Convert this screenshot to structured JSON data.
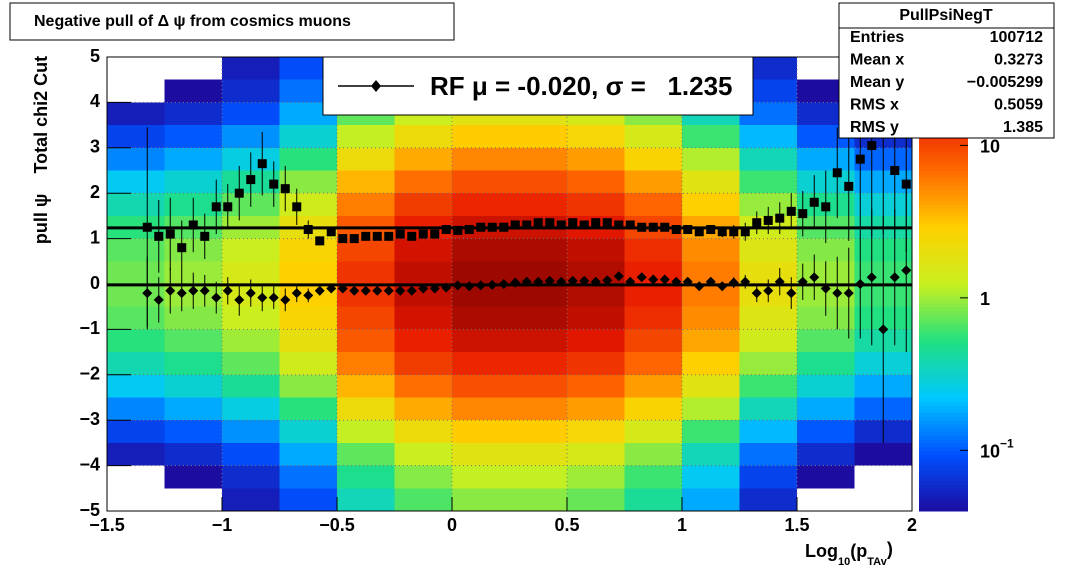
{
  "chart_data": {
    "type": "heatmap",
    "title": "Negative pull of Δ ψ from cosmics muons",
    "y_label": "pull ψ    Total chi2 Cut",
    "x_label": {
      "base": "Log",
      "sub": "10",
      "mid": "(p",
      "sub2": "TAv",
      "end": ")"
    },
    "legend_label": "RF μ = -0.020, σ =   1.235",
    "fit_mean": -0.02,
    "fit_sigma": 1.235,
    "stats": {
      "title": "PullPsiNegT",
      "rows": [
        {
          "label": "Entries",
          "value": "100712"
        },
        {
          "label": "Mean x",
          "value": "0.3273"
        },
        {
          "label": "Mean y",
          "value": "−0.005299"
        },
        {
          "label": "RMS x",
          "value": "0.5059"
        },
        {
          "label": "RMS y",
          "value": "1.385"
        }
      ]
    },
    "xlim": [
      -1.5,
      2
    ],
    "ylim": [
      -5,
      5
    ],
    "zlim": [
      0.04,
      38
    ],
    "log_z": true,
    "grid": true,
    "xticks": [
      {
        "value": -1.5,
        "label": "−1.5"
      },
      {
        "value": -1,
        "label": "−1"
      },
      {
        "value": -0.5,
        "label": "−0.5"
      },
      0,
      0.5,
      1,
      1.5,
      2
    ],
    "yticks": [
      {
        "value": -5,
        "label": "−5"
      },
      {
        "value": -4,
        "label": "−4"
      },
      {
        "value": -3,
        "label": "−3"
      },
      {
        "value": -2,
        "label": "−2"
      },
      {
        "value": -1,
        "label": "−1"
      },
      0,
      1,
      2,
      3,
      4,
      5
    ],
    "zticks": [
      {
        "value": 0.1,
        "label": "10",
        "exponent": "−1"
      },
      1,
      10
    ],
    "palette": [
      "#1c0ca0",
      "#0050ff",
      "#00c8ff",
      "#20e080",
      "#c8f020",
      "#ffd000",
      "#ff6a00",
      "#e81800",
      "#7a0000"
    ],
    "xbins": [
      -1.5,
      -1.25,
      -1,
      -0.75,
      -0.5,
      -0.25,
      0,
      0.25,
      0.5,
      0.75,
      1,
      1.25,
      1.5,
      1.75,
      2
    ],
    "ybins": [
      5,
      4.5,
      4,
      3.5,
      3,
      2.5,
      2,
      1.5,
      1,
      0.5,
      0,
      -0.5,
      -1,
      -1.5,
      -2,
      -2.5,
      -3,
      -3.5,
      -4,
      -4.5,
      -5
    ],
    "z": [
      [
        0.02,
        0.03,
        0.05,
        0.09,
        0.36,
        0.66,
        0.9,
        0.9,
        0.75,
        0.45,
        0.18,
        0.06,
        0.03,
        0.02
      ],
      [
        0.03,
        0.04,
        0.06,
        0.12,
        0.48,
        0.88,
        1.2,
        1.2,
        1.0,
        0.6,
        0.24,
        0.08,
        0.04,
        0.02
      ],
      [
        0.05,
        0.06,
        0.09,
        0.18,
        0.72,
        1.3,
        1.8,
        1.8,
        1.5,
        0.9,
        0.36,
        0.12,
        0.06,
        0.04
      ],
      [
        0.08,
        0.1,
        0.15,
        0.3,
        1.2,
        2.2,
        3.0,
        3.0,
        2.5,
        1.5,
        0.6,
        0.2,
        0.1,
        0.06
      ],
      [
        0.14,
        0.18,
        0.27,
        0.54,
        2.2,
        4.0,
        5.4,
        5.4,
        4.5,
        2.7,
        1.1,
        0.36,
        0.18,
        0.11
      ],
      [
        0.24,
        0.3,
        0.45,
        0.9,
        3.6,
        6.6,
        9.0,
        9.0,
        7.5,
        4.5,
        1.8,
        0.6,
        0.3,
        0.18
      ],
      [
        0.38,
        0.48,
        0.72,
        1.4,
        5.8,
        11,
        14,
        14,
        12,
        7.2,
        2.9,
        0.96,
        0.48,
        0.29
      ],
      [
        0.54,
        0.68,
        1.0,
        2.0,
        8.2,
        15,
        20,
        20,
        17,
        10,
        4.1,
        1.4,
        0.68,
        0.41
      ],
      [
        0.7,
        0.87,
        1.3,
        2.6,
        10,
        19,
        26,
        26,
        22,
        13,
        5.2,
        1.7,
        0.87,
        0.52
      ],
      [
        0.78,
        0.98,
        1.5,
        2.9,
        12,
        22,
        29,
        29,
        25,
        15,
        5.9,
        2.0,
        0.98,
        0.59
      ],
      [
        0.78,
        0.98,
        1.5,
        2.9,
        12,
        22,
        29,
        29,
        25,
        15,
        5.9,
        2.0,
        0.98,
        0.59
      ],
      [
        0.7,
        0.87,
        1.3,
        2.6,
        10,
        19,
        26,
        26,
        22,
        13,
        5.2,
        1.7,
        0.87,
        0.52
      ],
      [
        0.54,
        0.68,
        1.0,
        2.0,
        8.2,
        15,
        20,
        20,
        17,
        10,
        4.1,
        1.4,
        0.68,
        0.41
      ],
      [
        0.38,
        0.48,
        0.72,
        1.4,
        5.8,
        11,
        14,
        14,
        12,
        7.2,
        2.9,
        0.96,
        0.48,
        0.29
      ],
      [
        0.24,
        0.3,
        0.45,
        0.9,
        3.6,
        6.6,
        9.0,
        9.0,
        7.5,
        4.5,
        1.8,
        0.6,
        0.3,
        0.18
      ],
      [
        0.14,
        0.18,
        0.27,
        0.54,
        2.2,
        4.0,
        5.4,
        5.4,
        4.5,
        2.7,
        1.1,
        0.36,
        0.18,
        0.11
      ],
      [
        0.08,
        0.1,
        0.15,
        0.3,
        1.2,
        2.2,
        3.0,
        3.0,
        2.5,
        1.5,
        0.6,
        0.2,
        0.1,
        0.06
      ],
      [
        0.05,
        0.06,
        0.09,
        0.18,
        0.72,
        1.3,
        1.8,
        1.8,
        1.5,
        0.9,
        0.36,
        0.12,
        0.06,
        0.04
      ],
      [
        0.03,
        0.04,
        0.06,
        0.12,
        0.48,
        0.88,
        1.2,
        1.2,
        1.0,
        0.6,
        0.24,
        0.08,
        0.04,
        0.02
      ],
      [
        0.02,
        0.03,
        0.05,
        0.09,
        0.36,
        0.66,
        0.9,
        0.9,
        0.75,
        0.45,
        0.18,
        0.06,
        0.03,
        0.02
      ]
    ],
    "x": [
      -1.325,
      -1.275,
      -1.225,
      -1.175,
      -1.125,
      -1.075,
      -1.025,
      -0.975,
      -0.925,
      -0.875,
      -0.825,
      -0.775,
      -0.725,
      -0.675,
      -0.625,
      -0.575,
      -0.525,
      -0.475,
      -0.425,
      -0.375,
      -0.325,
      -0.275,
      -0.225,
      -0.175,
      -0.125,
      -0.075,
      -0.025,
      0.025,
      0.075,
      0.125,
      0.175,
      0.225,
      0.275,
      0.325,
      0.375,
      0.425,
      0.475,
      0.525,
      0.575,
      0.625,
      0.675,
      0.725,
      0.775,
      0.825,
      0.875,
      0.925,
      0.975,
      1.025,
      1.075,
      1.125,
      1.175,
      1.225,
      1.275,
      1.325,
      1.375,
      1.425,
      1.475,
      1.525,
      1.575,
      1.625,
      1.675,
      1.725,
      1.775,
      1.825,
      1.875,
      1.925,
      1.975
    ],
    "series": [
      {
        "marker": "diamond",
        "color": "#000000",
        "values": [
          -0.2,
          -0.35,
          -0.15,
          -0.2,
          -0.15,
          -0.15,
          -0.3,
          -0.15,
          -0.35,
          -0.2,
          -0.3,
          -0.3,
          -0.35,
          -0.2,
          -0.25,
          -0.15,
          -0.1,
          -0.1,
          -0.15,
          -0.15,
          -0.15,
          -0.15,
          -0.15,
          -0.15,
          -0.1,
          -0.1,
          -0.08,
          -0.03,
          -0.05,
          -0.03,
          -0.02,
          0.0,
          0.03,
          0.05,
          0.05,
          0.07,
          0.05,
          0.07,
          0.07,
          0.05,
          0.08,
          0.17,
          0.05,
          0.15,
          0.1,
          0.1,
          0.05,
          0.05,
          -0.05,
          0.05,
          -0.05,
          0.03,
          0.05,
          -0.2,
          -0.15,
          0.05,
          -0.2,
          0.05,
          0.15,
          -0.1,
          -0.2,
          -0.2,
          0.0,
          0.15,
          -1.0,
          0.15,
          0.3
        ],
        "errors": [
          0.8,
          0.5,
          0.5,
          0.4,
          0.4,
          0.35,
          0.35,
          0.3,
          0.35,
          0.3,
          0.3,
          0.25,
          0.25,
          0.2,
          0.15,
          0.1,
          0.08,
          0.07,
          0.06,
          0.05,
          0.05,
          0.04,
          0.04,
          0.04,
          0.04,
          0.03,
          0.03,
          0.03,
          0.03,
          0.03,
          0.03,
          0.03,
          0.03,
          0.03,
          0.03,
          0.03,
          0.03,
          0.03,
          0.03,
          0.03,
          0.03,
          0.03,
          0.04,
          0.04,
          0.04,
          0.05,
          0.05,
          0.06,
          0.07,
          0.08,
          0.1,
          0.12,
          0.15,
          0.2,
          0.25,
          0.3,
          0.35,
          0.4,
          0.5,
          0.6,
          0.8,
          1.0,
          1.2,
          1.5,
          2.5,
          1.5,
          1.8
        ]
      },
      {
        "marker": "square",
        "color": "#000000",
        "values": [
          1.25,
          1.05,
          1.1,
          0.8,
          1.3,
          1.05,
          1.7,
          1.7,
          2.0,
          2.3,
          2.65,
          2.2,
          2.1,
          1.7,
          1.2,
          0.95,
          1.15,
          1.0,
          1.0,
          1.05,
          1.05,
          1.05,
          1.1,
          1.05,
          1.1,
          1.1,
          1.2,
          1.18,
          1.2,
          1.25,
          1.25,
          1.25,
          1.3,
          1.3,
          1.35,
          1.35,
          1.3,
          1.35,
          1.3,
          1.35,
          1.35,
          1.3,
          1.3,
          1.25,
          1.25,
          1.25,
          1.2,
          1.2,
          1.15,
          1.2,
          1.15,
          1.15,
          1.15,
          1.35,
          1.4,
          1.45,
          1.6,
          1.55,
          1.8,
          1.7,
          2.45,
          2.15,
          2.75,
          3.05,
          3.6,
          2.5,
          2.2
        ],
        "errors": [
          2.2,
          0.8,
          0.8,
          0.6,
          0.6,
          0.5,
          0.6,
          0.5,
          0.6,
          0.6,
          0.7,
          0.5,
          0.5,
          0.4,
          0.2,
          0.1,
          0.08,
          0.06,
          0.05,
          0.05,
          0.04,
          0.04,
          0.04,
          0.04,
          0.04,
          0.04,
          0.04,
          0.04,
          0.04,
          0.04,
          0.04,
          0.04,
          0.04,
          0.04,
          0.04,
          0.04,
          0.04,
          0.04,
          0.04,
          0.04,
          0.04,
          0.04,
          0.04,
          0.05,
          0.05,
          0.06,
          0.07,
          0.08,
          0.09,
          0.1,
          0.12,
          0.15,
          0.2,
          0.25,
          0.3,
          0.35,
          0.4,
          0.5,
          0.6,
          0.8,
          1.0,
          1.2,
          1.5,
          2.0,
          2.5,
          1.5,
          1.5
        ]
      }
    ]
  }
}
